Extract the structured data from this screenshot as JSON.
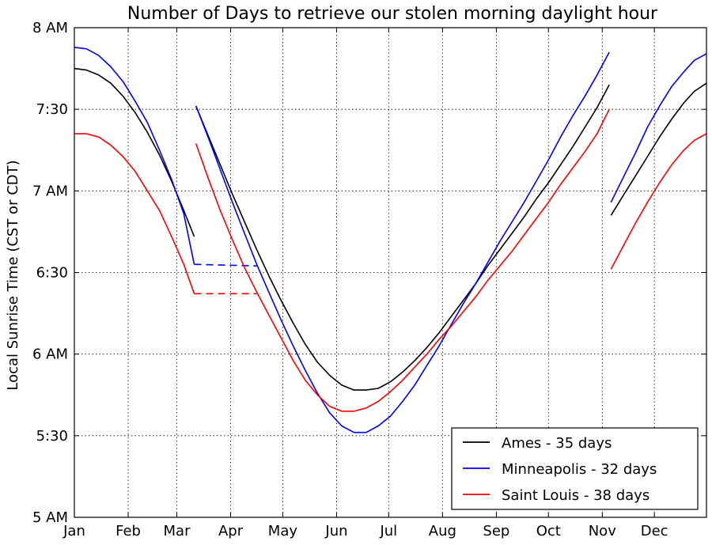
{
  "chart_data": {
    "type": "line",
    "title": "Number of Days to retrieve our stolen morning daylight hour",
    "ylabel": "Local Sunrise Time (CST or CDT)",
    "xlabel": "",
    "x_unit": "day of year",
    "y_unit": "hours after midnight",
    "xlim": [
      1,
      365
    ],
    "ylim": [
      5,
      8
    ],
    "grid": true,
    "legend_position": "lower-right",
    "x_ticks": [
      {
        "label": "Jan",
        "value": 1
      },
      {
        "label": "Feb",
        "value": 32
      },
      {
        "label": "Mar",
        "value": 60
      },
      {
        "label": "Apr",
        "value": 91
      },
      {
        "label": "May",
        "value": 121
      },
      {
        "label": "Jun",
        "value": 152
      },
      {
        "label": "Jul",
        "value": 182
      },
      {
        "label": "Aug",
        "value": 213
      },
      {
        "label": "Sep",
        "value": 244
      },
      {
        "label": "Oct",
        "value": 274
      },
      {
        "label": "Nov",
        "value": 305
      },
      {
        "label": "Dec",
        "value": 335
      }
    ],
    "y_ticks": [
      {
        "label": "5 AM",
        "value": 5.0
      },
      {
        "label": "5:30",
        "value": 5.5
      },
      {
        "label": "6 AM",
        "value": 6.0
      },
      {
        "label": "6:30",
        "value": 6.5
      },
      {
        "label": "7 AM",
        "value": 7.0
      },
      {
        "label": "7:30",
        "value": 7.5
      },
      {
        "label": "8 AM",
        "value": 8.0
      }
    ],
    "series": [
      {
        "name": "Ames - 35 days",
        "color": "#000000",
        "segments": [
          [
            [
              1,
              7.75
            ],
            [
              8,
              7.74
            ],
            [
              15,
              7.71
            ],
            [
              22,
              7.66
            ],
            [
              29,
              7.58
            ],
            [
              36,
              7.48
            ],
            [
              43,
              7.36
            ],
            [
              50,
              7.22
            ],
            [
              57,
              7.06
            ],
            [
              64,
              6.88
            ],
            [
              70,
              6.72
            ]
          ],
          [
            [
              71,
              7.52
            ],
            [
              78,
              7.34
            ],
            [
              85,
              7.16
            ],
            [
              92,
              6.98
            ],
            [
              99,
              6.81
            ],
            [
              106,
              6.64
            ],
            [
              113,
              6.48
            ],
            [
              120,
              6.33
            ],
            [
              127,
              6.19
            ],
            [
              134,
              6.06
            ],
            [
              141,
              5.95
            ],
            [
              148,
              5.87
            ],
            [
              155,
              5.81
            ],
            [
              162,
              5.78
            ],
            [
              169,
              5.78
            ],
            [
              176,
              5.79
            ],
            [
              183,
              5.83
            ],
            [
              190,
              5.89
            ],
            [
              197,
              5.96
            ],
            [
              204,
              6.04
            ],
            [
              211,
              6.13
            ],
            [
              218,
              6.23
            ],
            [
              225,
              6.33
            ],
            [
              232,
              6.43
            ],
            [
              239,
              6.54
            ],
            [
              246,
              6.64
            ],
            [
              253,
              6.74
            ],
            [
              260,
              6.84
            ],
            [
              267,
              6.95
            ],
            [
              274,
              7.05
            ],
            [
              281,
              7.16
            ],
            [
              288,
              7.27
            ],
            [
              295,
              7.39
            ],
            [
              302,
              7.51
            ],
            [
              309,
              7.65
            ]
          ],
          [
            [
              310,
              6.85
            ],
            [
              317,
              6.97
            ],
            [
              324,
              7.09
            ],
            [
              331,
              7.21
            ],
            [
              338,
              7.33
            ],
            [
              345,
              7.44
            ],
            [
              352,
              7.54
            ],
            [
              358,
              7.61
            ],
            [
              365,
              7.66
            ]
          ]
        ],
        "dashed_segments": []
      },
      {
        "name": "Minneapolis - 32 days",
        "color": "#0000ff",
        "segments": [
          [
            [
              1,
              7.88
            ],
            [
              8,
              7.87
            ],
            [
              15,
              7.83
            ],
            [
              22,
              7.76
            ],
            [
              29,
              7.67
            ],
            [
              36,
              7.55
            ],
            [
              43,
              7.42
            ],
            [
              50,
              7.25
            ],
            [
              57,
              7.07
            ],
            [
              64,
              6.86
            ],
            [
              70,
              6.55
            ]
          ],
          [
            [
              71,
              7.52
            ],
            [
              78,
              7.33
            ],
            [
              85,
              7.13
            ],
            [
              92,
              6.93
            ],
            [
              99,
              6.74
            ],
            [
              106,
              6.55
            ],
            [
              113,
              6.38
            ],
            [
              120,
              6.21
            ],
            [
              127,
              6.05
            ],
            [
              134,
              5.9
            ],
            [
              141,
              5.76
            ],
            [
              148,
              5.64
            ],
            [
              155,
              5.56
            ],
            [
              162,
              5.52
            ],
            [
              169,
              5.52
            ],
            [
              176,
              5.56
            ],
            [
              183,
              5.62
            ],
            [
              190,
              5.71
            ],
            [
              197,
              5.81
            ],
            [
              204,
              5.93
            ],
            [
              211,
              6.05
            ],
            [
              218,
              6.18
            ],
            [
              225,
              6.31
            ],
            [
              232,
              6.43
            ],
            [
              239,
              6.56
            ],
            [
              246,
              6.69
            ],
            [
              253,
              6.81
            ],
            [
              260,
              6.93
            ],
            [
              267,
              7.06
            ],
            [
              274,
              7.19
            ],
            [
              281,
              7.33
            ],
            [
              288,
              7.46
            ],
            [
              295,
              7.58
            ],
            [
              302,
              7.71
            ],
            [
              309,
              7.85
            ]
          ],
          [
            [
              310,
              6.93
            ],
            [
              317,
              7.08
            ],
            [
              324,
              7.23
            ],
            [
              331,
              7.39
            ],
            [
              338,
              7.52
            ],
            [
              345,
              7.64
            ],
            [
              352,
              7.73
            ],
            [
              358,
              7.8
            ],
            [
              365,
              7.84
            ]
          ]
        ],
        "dashed_segments": [
          [
            [
              70,
              6.55
            ],
            [
              106,
              6.54
            ]
          ]
        ]
      },
      {
        "name": "Saint Louis - 38 days",
        "color": "#ff0000",
        "segments": [
          [
            [
              1,
              7.35
            ],
            [
              8,
              7.35
            ],
            [
              15,
              7.33
            ],
            [
              22,
              7.28
            ],
            [
              29,
              7.21
            ],
            [
              36,
              7.12
            ],
            [
              43,
              7.0
            ],
            [
              50,
              6.88
            ],
            [
              57,
              6.72
            ],
            [
              64,
              6.55
            ],
            [
              70,
              6.37
            ]
          ],
          [
            [
              71,
              7.29
            ],
            [
              78,
              7.08
            ],
            [
              85,
              6.88
            ],
            [
              92,
              6.7
            ],
            [
              99,
              6.53
            ],
            [
              106,
              6.38
            ],
            [
              113,
              6.24
            ],
            [
              120,
              6.1
            ],
            [
              127,
              5.96
            ],
            [
              134,
              5.84
            ],
            [
              141,
              5.75
            ],
            [
              148,
              5.68
            ],
            [
              155,
              5.65
            ],
            [
              162,
              5.65
            ],
            [
              169,
              5.67
            ],
            [
              176,
              5.71
            ],
            [
              183,
              5.77
            ],
            [
              190,
              5.84
            ],
            [
              197,
              5.92
            ],
            [
              204,
              6.0
            ],
            [
              211,
              6.09
            ],
            [
              218,
              6.17
            ],
            [
              225,
              6.26
            ],
            [
              232,
              6.35
            ],
            [
              239,
              6.45
            ],
            [
              246,
              6.54
            ],
            [
              253,
              6.63
            ],
            [
              260,
              6.73
            ],
            [
              267,
              6.83
            ],
            [
              274,
              6.93
            ],
            [
              281,
              7.04
            ],
            [
              288,
              7.14
            ],
            [
              295,
              7.24
            ],
            [
              302,
              7.35
            ],
            [
              309,
              7.5
            ]
          ],
          [
            [
              310,
              6.52
            ],
            [
              317,
              6.66
            ],
            [
              324,
              6.8
            ],
            [
              331,
              6.93
            ],
            [
              338,
              7.05
            ],
            [
              345,
              7.16
            ],
            [
              352,
              7.25
            ],
            [
              358,
              7.31
            ],
            [
              365,
              7.35
            ]
          ]
        ],
        "dashed_segments": [
          [
            [
              70,
              6.37
            ],
            [
              106,
              6.37
            ]
          ]
        ]
      }
    ]
  }
}
